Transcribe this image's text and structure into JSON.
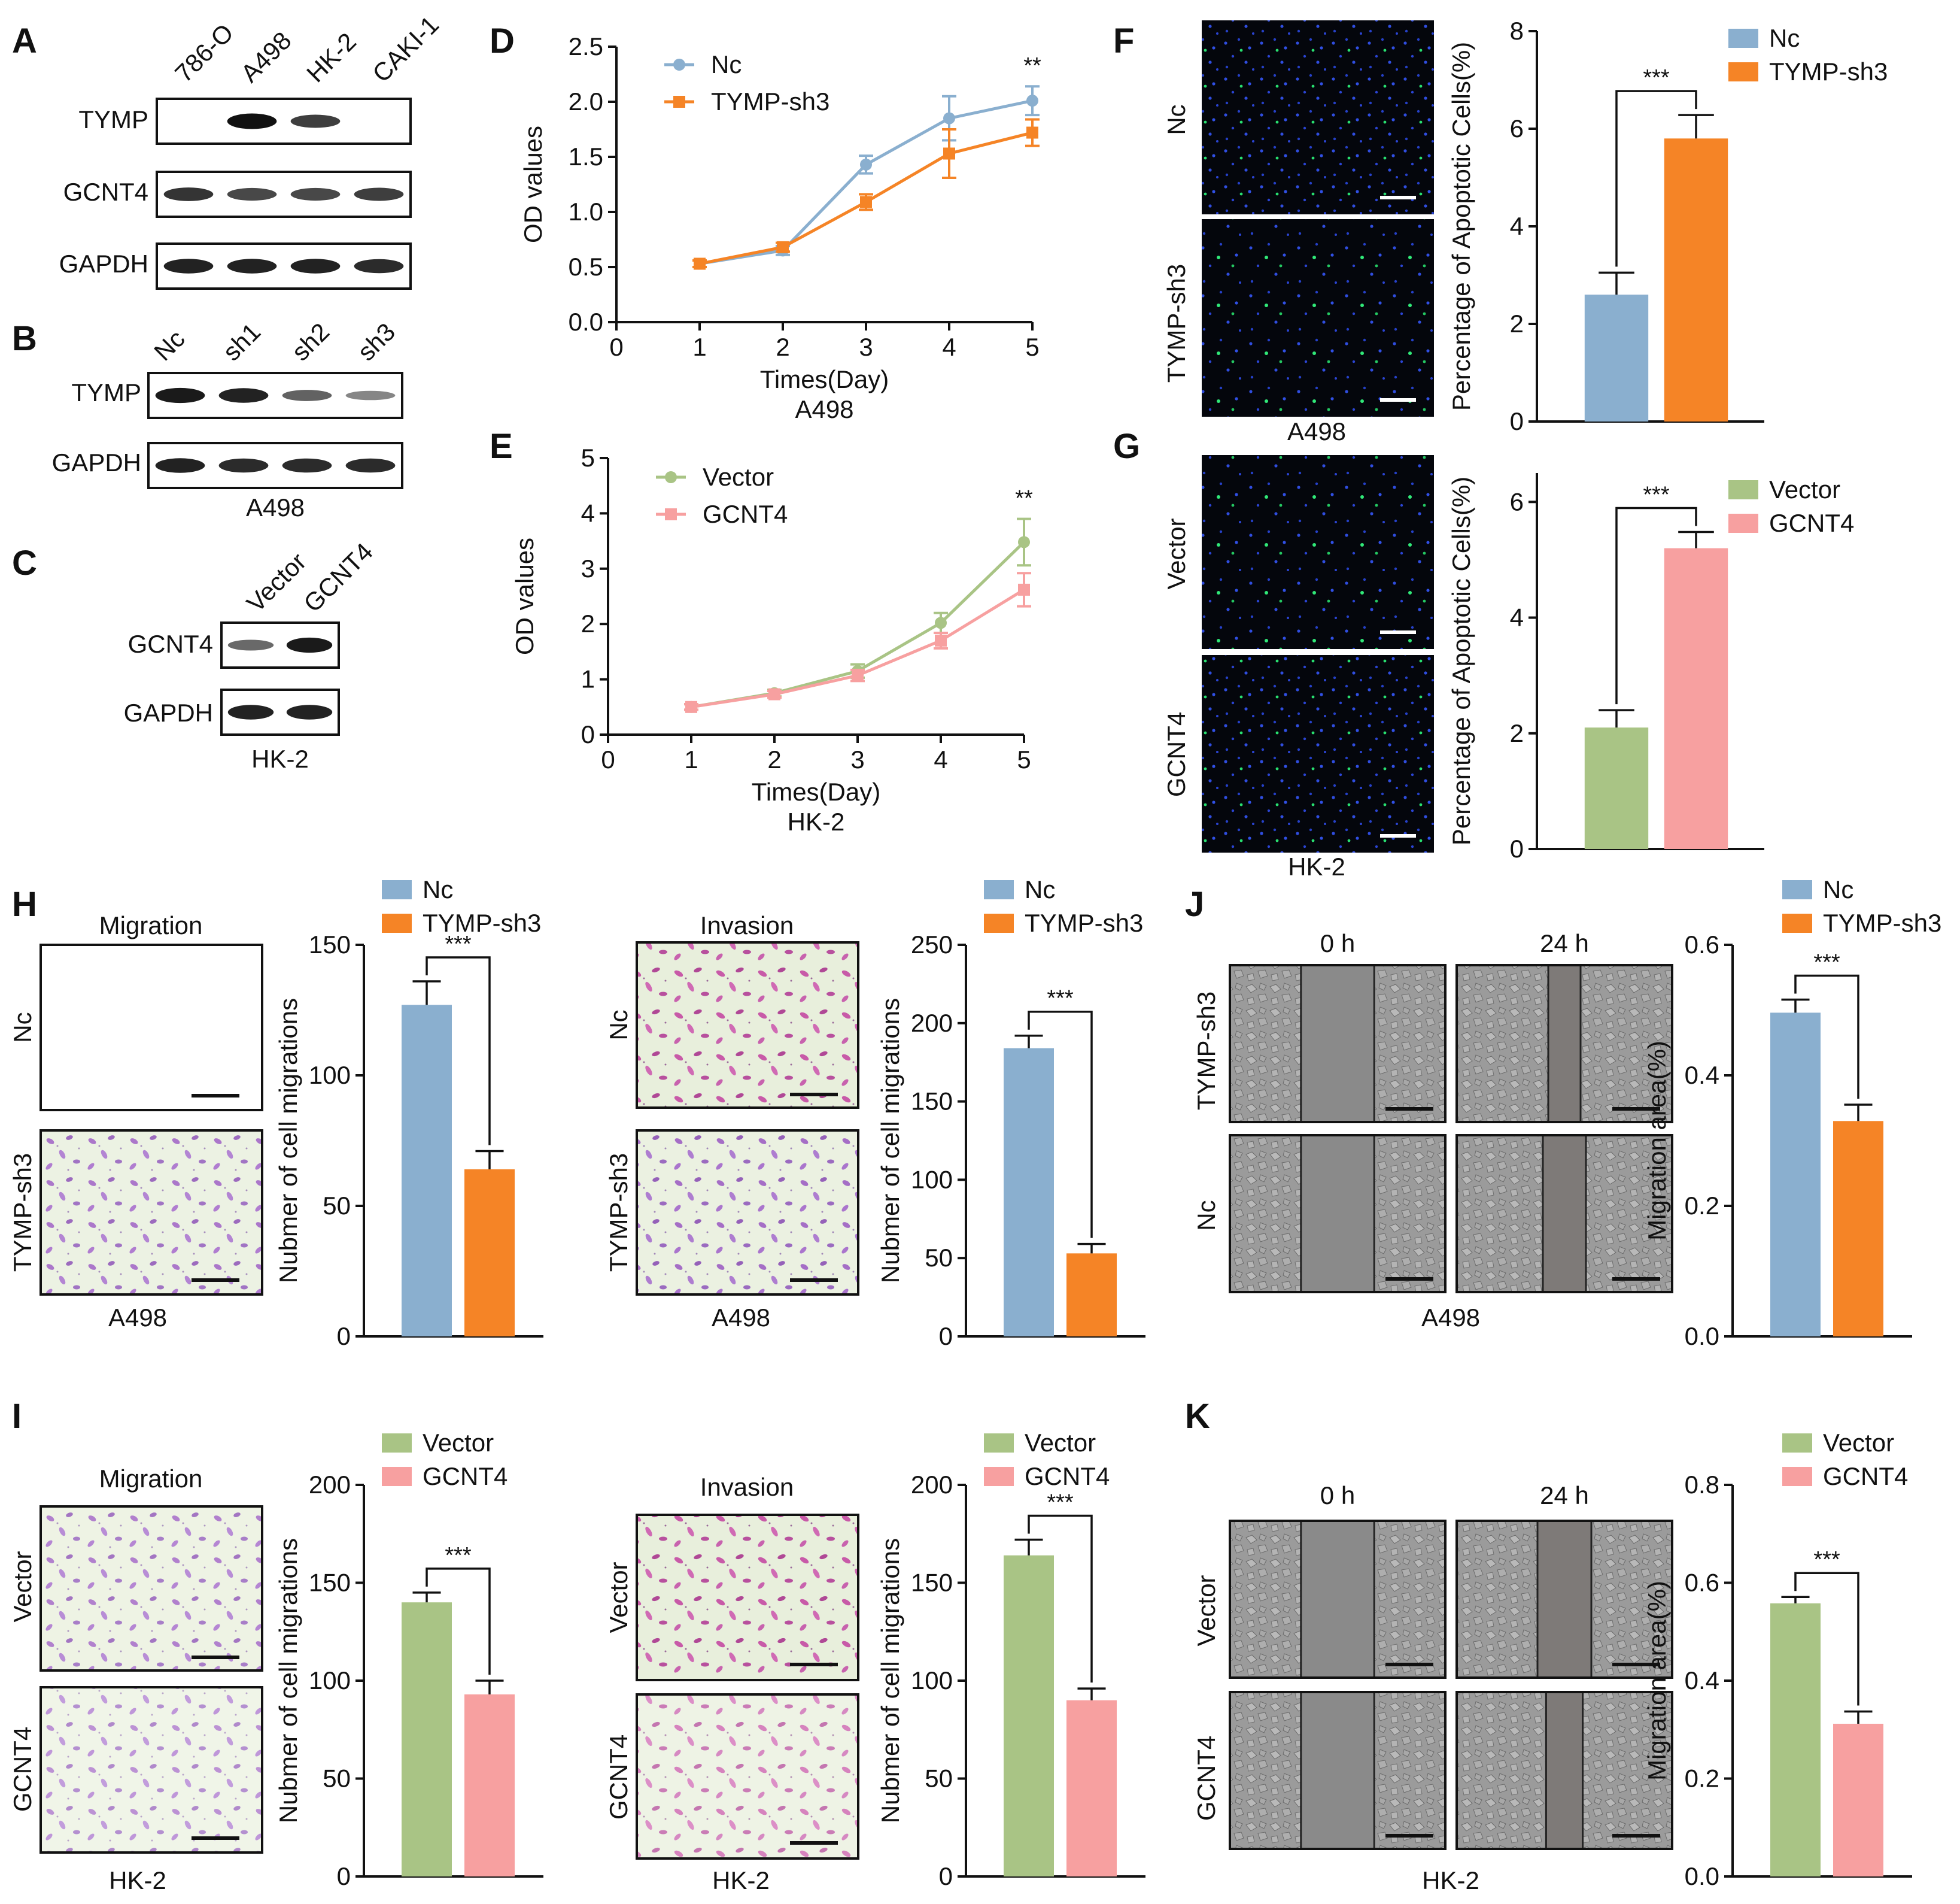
{
  "panels": {
    "A": {
      "label": "A",
      "lanes": [
        "786-O",
        "A498",
        "HK-2",
        "CAKI-1"
      ],
      "rows": [
        "TYMP",
        "GCNT4",
        "GAPDH"
      ],
      "band_intensity": {
        "TYMP": [
          0.05,
          1.0,
          0.75,
          0.05
        ],
        "GCNT4": [
          0.8,
          0.7,
          0.7,
          0.75
        ],
        "GAPDH": [
          0.9,
          0.9,
          0.9,
          0.85
        ]
      }
    },
    "B": {
      "label": "B",
      "lanes": [
        "Nc",
        "sh1",
        "sh2",
        "sh3"
      ],
      "rows": [
        "TYMP",
        "GAPDH"
      ],
      "cell_line": "A498",
      "band_intensity": {
        "TYMP": [
          0.95,
          0.9,
          0.55,
          0.35
        ],
        "GAPDH": [
          0.9,
          0.85,
          0.85,
          0.85
        ]
      }
    },
    "C": {
      "label": "C",
      "lanes": [
        "Vector",
        "GCNT4"
      ],
      "rows": [
        "GCNT4",
        "GAPDH"
      ],
      "cell_line": "HK-2",
      "band_intensity": {
        "GCNT4": [
          0.5,
          0.95
        ],
        "GAPDH": [
          0.9,
          0.9
        ]
      }
    },
    "F": {
      "label": "F",
      "row_labels": [
        "Nc",
        "TYMP-sh3"
      ],
      "cell_line": "A498"
    },
    "G": {
      "label": "G",
      "row_labels": [
        "Vector",
        "GCNT4"
      ],
      "cell_line": "HK-2"
    },
    "H": {
      "label": "H",
      "migration_title": "Migration",
      "invasion_title": "Invasion",
      "row_labels": [
        "Nc",
        "TYMP-sh3"
      ],
      "cell_line": "A498"
    },
    "I": {
      "label": "I",
      "migration_title": "Migration",
      "invasion_title": "Invasion",
      "row_labels": [
        "Vector",
        "GCNT4"
      ],
      "cell_line": "HK-2"
    },
    "J": {
      "label": "J",
      "time_labels": [
        "0 h",
        "24 h"
      ],
      "row_labels": [
        "TYMP-sh3",
        "Nc"
      ],
      "cell_line": "A498",
      "gap_widths_0h": [
        0.34,
        0.34
      ],
      "gap_widths_24h": [
        0.15,
        0.2
      ]
    },
    "K": {
      "label": "K",
      "time_labels": [
        "0 h",
        "24 h"
      ],
      "row_labels": [
        "Vector",
        "GCNT4"
      ],
      "cell_line": "HK-2",
      "gap_widths_0h": [
        0.34,
        0.34
      ],
      "gap_widths_24h": [
        0.25,
        0.17
      ]
    }
  },
  "colors": {
    "blue": "#8AAFCF",
    "orange": "#F58426",
    "green": "#A9C485",
    "pink": "#F7A0A0",
    "blue_line": "#8AAFCF",
    "orange_line": "#F58426",
    "green_line": "#A9C485",
    "pink_line": "#F7A0A0"
  },
  "chart_data": [
    {
      "id": "D",
      "panel_label": "D",
      "type": "line",
      "x": [
        1,
        2,
        3,
        4,
        5
      ],
      "series": [
        {
          "name": "Nc",
          "values": [
            0.53,
            0.65,
            1.43,
            1.85,
            2.01
          ],
          "errors": [
            0.03,
            0.04,
            0.08,
            0.2,
            0.13
          ],
          "color": "blue"
        },
        {
          "name": "TYMP-sh3",
          "values": [
            0.53,
            0.68,
            1.09,
            1.53,
            1.72
          ],
          "errors": [
            0.03,
            0.04,
            0.07,
            0.22,
            0.12
          ],
          "color": "orange"
        }
      ],
      "xlim": [
        0,
        5
      ],
      "ylim": [
        0,
        2.5
      ],
      "xticks": [
        "0",
        "1",
        "2",
        "3",
        "4",
        "5"
      ],
      "yticks": [
        "0.0",
        "0.5",
        "1.0",
        "1.5",
        "2.0",
        "2.5"
      ],
      "xlabel": "Times(Day)",
      "ylabel": "OD values",
      "subtitle": "A498",
      "annotation": "**",
      "legend": "top-left"
    },
    {
      "id": "E",
      "panel_label": "E",
      "type": "line",
      "x": [
        1,
        2,
        3,
        4,
        5
      ],
      "series": [
        {
          "name": "Vector",
          "values": [
            0.5,
            0.75,
            1.15,
            2.02,
            3.48
          ],
          "errors": [
            0.05,
            0.06,
            0.12,
            0.18,
            0.42
          ],
          "color": "green"
        },
        {
          "name": "GCNT4",
          "values": [
            0.5,
            0.73,
            1.07,
            1.7,
            2.62
          ],
          "errors": [
            0.05,
            0.06,
            0.1,
            0.14,
            0.3
          ],
          "color": "pink"
        }
      ],
      "xlim": [
        0,
        5
      ],
      "ylim": [
        0,
        5
      ],
      "xticks": [
        "0",
        "1",
        "2",
        "3",
        "4",
        "5"
      ],
      "yticks": [
        "0",
        "1",
        "2",
        "3",
        "4",
        "5"
      ],
      "xlabel": "Times(Day)",
      "ylabel": "OD values",
      "subtitle": "HK-2",
      "annotation": "**",
      "legend": "top-left"
    },
    {
      "id": "F_bar",
      "type": "bar",
      "categories": [
        "Nc",
        "TYMP-sh3"
      ],
      "values": [
        2.6,
        5.8
      ],
      "errors": [
        0.45,
        0.48
      ],
      "colors": [
        "blue",
        "orange"
      ],
      "ylim": [
        0,
        8
      ],
      "yticks": [
        "0",
        "2",
        "4",
        "6",
        "8"
      ],
      "ylabel": "Percentage of Apoptotic Cells(%)",
      "annotation": "***",
      "legend": "top-right"
    },
    {
      "id": "G_bar",
      "type": "bar",
      "categories": [
        "Vector",
        "GCNT4"
      ],
      "values": [
        2.1,
        5.2
      ],
      "errors": [
        0.3,
        0.28
      ],
      "colors": [
        "green",
        "pink"
      ],
      "ylim": [
        0,
        6.5
      ],
      "yticks": [
        "0",
        "2",
        "4",
        "6"
      ],
      "ylabel": "Percentage of Apoptotic Cells(%)",
      "annotation": "***",
      "legend": "top-right"
    },
    {
      "id": "H_mig_bar",
      "type": "bar",
      "categories": [
        "Nc",
        "TYMP-sh3"
      ],
      "values": [
        127,
        64
      ],
      "errors": [
        9,
        7
      ],
      "colors": [
        "blue",
        "orange"
      ],
      "ylim": [
        0,
        150
      ],
      "yticks": [
        "0",
        "50",
        "100",
        "150"
      ],
      "ylabel": "Nubmer of cell migrations",
      "annotation": "***",
      "legend": "top-right"
    },
    {
      "id": "H_inv_bar",
      "type": "bar",
      "categories": [
        "Nc",
        "TYMP-sh3"
      ],
      "values": [
        184,
        53
      ],
      "errors": [
        8,
        6
      ],
      "colors": [
        "blue",
        "orange"
      ],
      "ylim": [
        0,
        250
      ],
      "yticks": [
        "0",
        "50",
        "100",
        "150",
        "200",
        "250"
      ],
      "ylabel": "Nubmer of cell migrations",
      "annotation": "***",
      "legend": "top-right"
    },
    {
      "id": "J_bar",
      "type": "bar",
      "categories": [
        "Nc",
        "TYMP-sh3"
      ],
      "values": [
        0.496,
        0.33
      ],
      "errors": [
        0.02,
        0.025
      ],
      "colors": [
        "blue",
        "orange"
      ],
      "ylim": [
        0,
        0.6
      ],
      "yticks": [
        "0.0",
        "0.2",
        "0.4",
        "0.6"
      ],
      "ylabel": "Migration area(%)",
      "annotation": "***",
      "legend": "top-right"
    },
    {
      "id": "I_mig_bar",
      "type": "bar",
      "categories": [
        "Vector",
        "GCNT4"
      ],
      "values": [
        140,
        93
      ],
      "errors": [
        5,
        7
      ],
      "colors": [
        "green",
        "pink"
      ],
      "ylim": [
        0,
        200
      ],
      "yticks": [
        "0",
        "50",
        "100",
        "150",
        "200"
      ],
      "ylabel": "Nubmer of cell migrations",
      "annotation": "***",
      "legend": "top-right"
    },
    {
      "id": "I_inv_bar",
      "type": "bar",
      "categories": [
        "Vector",
        "GCNT4"
      ],
      "values": [
        164,
        90
      ],
      "errors": [
        8,
        6
      ],
      "colors": [
        "green",
        "pink"
      ],
      "ylim": [
        0,
        200
      ],
      "yticks": [
        "0",
        "50",
        "100",
        "150",
        "200"
      ],
      "ylabel": "Nubmer of cell migrations",
      "annotation": "***",
      "legend": "top-right"
    },
    {
      "id": "K_bar",
      "type": "bar",
      "categories": [
        "Vector",
        "GCNT4"
      ],
      "values": [
        0.558,
        0.312
      ],
      "errors": [
        0.013,
        0.025
      ],
      "colors": [
        "green",
        "pink"
      ],
      "ylim": [
        0,
        0.8
      ],
      "yticks": [
        "0.0",
        "0.2",
        "0.4",
        "0.6",
        "0.8"
      ],
      "ylabel": "Migration area(%)",
      "annotation": "***",
      "legend": "top-right"
    }
  ]
}
